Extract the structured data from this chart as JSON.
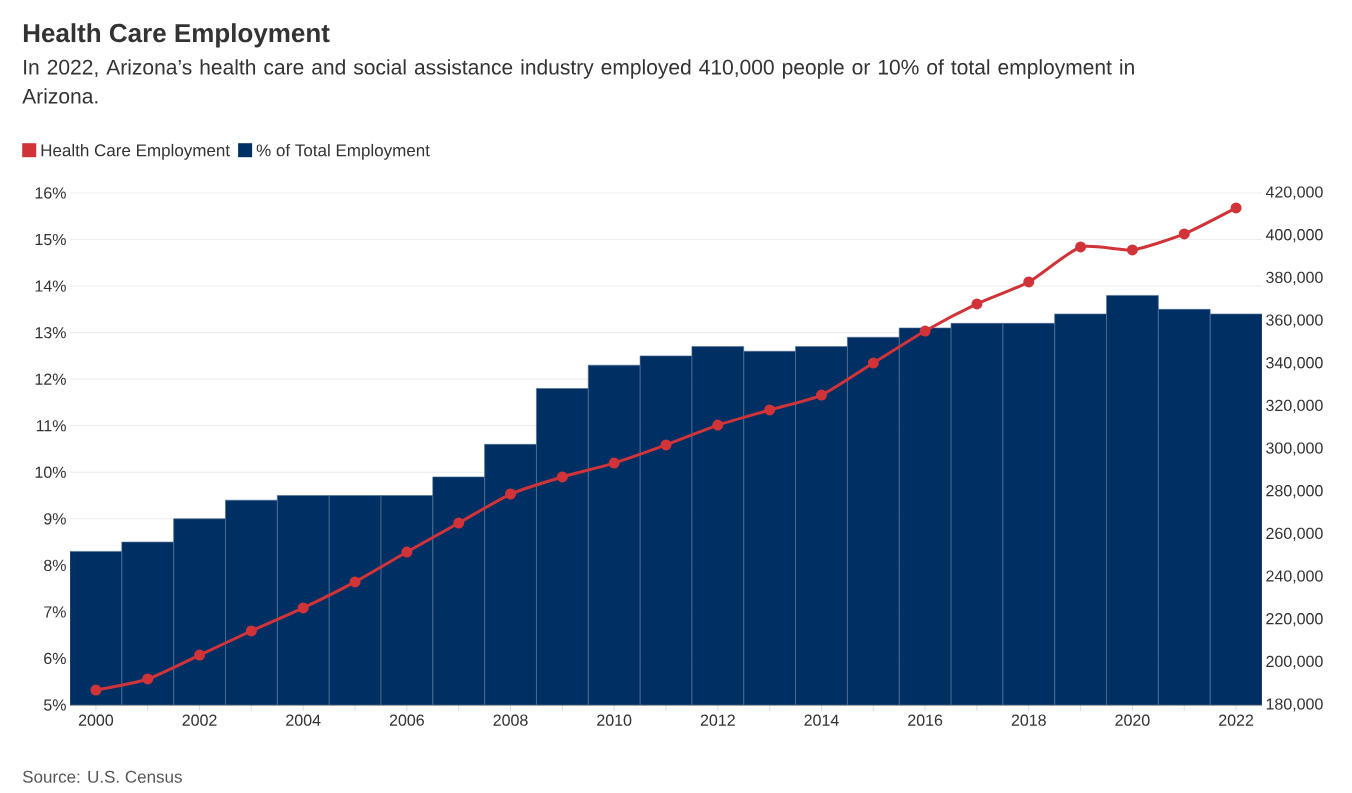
{
  "chart_data": {
    "type": "bar",
    "title": "Health Care Employment",
    "subtitle": "In 2022, Arizona’s health care and social assistance industry employed 410,000 people or 10% of total employment in Arizona.",
    "categories": [
      "2000",
      null,
      "2002",
      null,
      "2004",
      null,
      "2006",
      null,
      "2008",
      null,
      "2010",
      null,
      "2012",
      null,
      "2014",
      null,
      "2016",
      null,
      "2018",
      null,
      "2020",
      null,
      "2022"
    ],
    "series": [
      {
        "name": "Health Care Employment",
        "type": "line",
        "axis": "y2",
        "color": "#d13438",
        "marker": "circle",
        "values": [
          187000,
          192200,
          203400,
          214700,
          225500,
          237700,
          251700,
          265300,
          278900,
          286900,
          293400,
          301900,
          311200,
          318300,
          325300,
          340300,
          355300,
          368000,
          378300,
          394700,
          393300,
          400800,
          413000
        ]
      },
      {
        "name": "% of Total Employment",
        "axis": "y",
        "color": "#003063",
        "values": [
          8.3,
          8.5,
          9.0,
          9.4,
          9.5,
          9.5,
          9.5,
          9.9,
          10.6,
          11.8,
          12.3,
          12.5,
          12.7,
          12.6,
          12.7,
          12.9,
          13.1,
          13.2,
          13.2,
          13.4,
          13.8,
          13.5,
          13.4
        ]
      }
    ],
    "ylim": [
      5,
      16
    ],
    "yticks": [
      {
        "value": 5,
        "label": "5%"
      },
      {
        "value": 6,
        "label": "6%"
      },
      {
        "value": 7,
        "label": "7%"
      },
      {
        "value": 8,
        "label": "8%"
      },
      {
        "value": 9,
        "label": "9%"
      },
      {
        "value": 10,
        "label": "10%"
      },
      {
        "value": 11,
        "label": "11%"
      },
      {
        "value": 12,
        "label": "12%"
      },
      {
        "value": 13,
        "label": "13%"
      },
      {
        "value": 14,
        "label": "14%"
      },
      {
        "value": 15,
        "label": "15%"
      },
      {
        "value": 16,
        "label": "16%"
      }
    ],
    "y2lim": [
      180000,
      420000
    ],
    "y2ticks": [
      {
        "value": 180000,
        "label": "180,000"
      },
      {
        "value": 200000,
        "label": "200,000"
      },
      {
        "value": 220000,
        "label": "220,000"
      },
      {
        "value": 240000,
        "label": "240,000"
      },
      {
        "value": 260000,
        "label": "260,000"
      },
      {
        "value": 280000,
        "label": "280,000"
      },
      {
        "value": 300000,
        "label": "300,000"
      },
      {
        "value": 320000,
        "label": "320,000"
      },
      {
        "value": 340000,
        "label": "340,000"
      },
      {
        "value": 360000,
        "label": "360,000"
      },
      {
        "value": 380000,
        "label": "380,000"
      },
      {
        "value": 400000,
        "label": "400,000"
      },
      {
        "value": 420000,
        "label": "420,000"
      }
    ],
    "grid": "y",
    "legend": "top left",
    "annotations": [
      "Source: U.S. Census"
    ]
  }
}
